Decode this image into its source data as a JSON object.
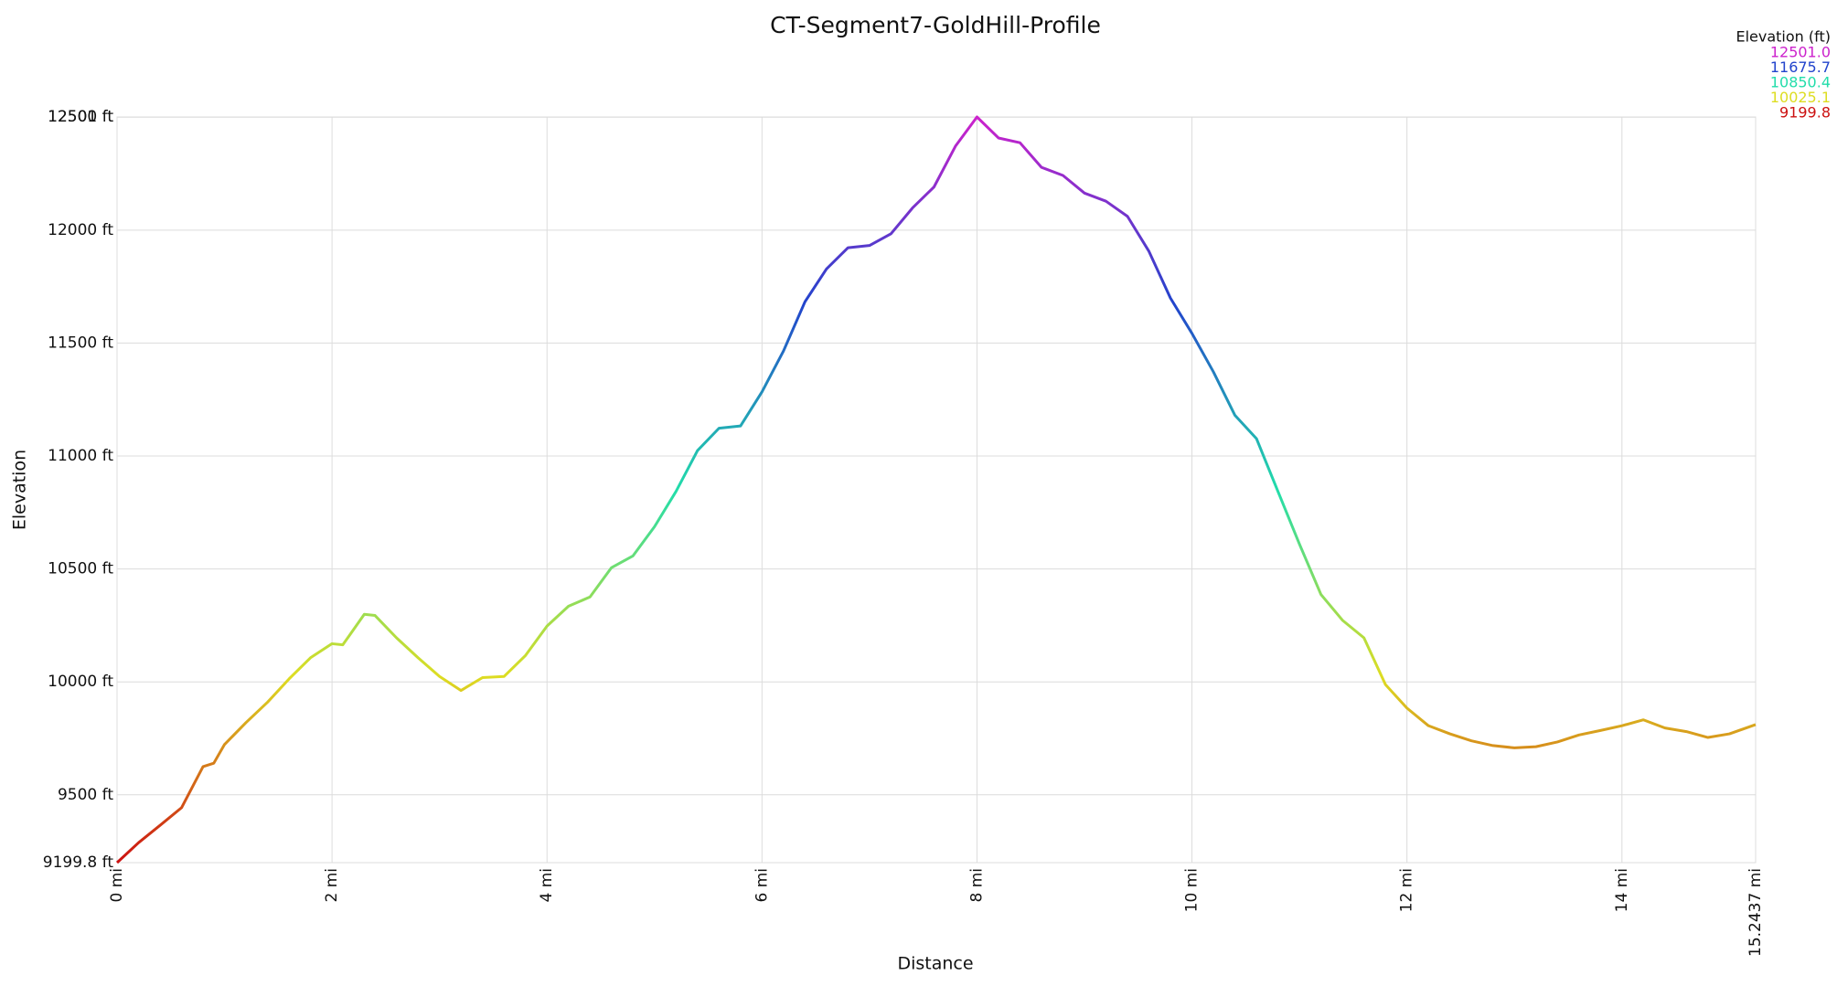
{
  "chart_data": {
    "type": "line",
    "title": "CT-Segment7-GoldHill-Profile",
    "x_label": "Distance",
    "y_label": "Elevation",
    "legend_title": "Elevation (ft)",
    "legend": [
      {
        "value": 12501.0,
        "label": "12501.0",
        "color": "#cc22cc"
      },
      {
        "value": 11675.7,
        "label": "11675.7",
        "color": "#2244cc"
      },
      {
        "value": 10850.4,
        "label": "10850.4",
        "color": "#22ddaa"
      },
      {
        "value": 10025.1,
        "label": "10025.1",
        "color": "#dddd22"
      },
      {
        "value": 9199.8,
        "label": "9199.8",
        "color": "#cc1111"
      }
    ],
    "x": [
      0,
      0.2,
      0.4,
      0.6,
      0.8,
      0.9,
      1.0,
      1.2,
      1.4,
      1.6,
      1.8,
      2.0,
      2.1,
      2.3,
      2.4,
      2.6,
      2.8,
      3.0,
      3.2,
      3.4,
      3.6,
      3.8,
      4.0,
      4.2,
      4.4,
      4.6,
      4.8,
      5.0,
      5.2,
      5.4,
      5.6,
      5.8,
      6.0,
      6.2,
      6.4,
      6.6,
      6.8,
      7.0,
      7.2,
      7.4,
      7.6,
      7.8,
      8.0,
      8.2,
      8.4,
      8.6,
      8.8,
      9.0,
      9.2,
      9.4,
      9.6,
      9.8,
      10.0,
      10.2,
      10.4,
      10.6,
      10.8,
      11.0,
      11.2,
      11.4,
      11.6,
      11.8,
      12.0,
      12.2,
      12.4,
      12.6,
      12.8,
      13.0,
      13.2,
      13.4,
      13.6,
      13.8,
      14.0,
      14.2,
      14.4,
      14.6,
      14.8,
      15.0,
      15.2437
    ],
    "series": [
      {
        "name": "Elevation",
        "values": [
          9199.8,
          9288,
          9365,
          9443,
          9625,
          9640,
          9723,
          9820,
          9910,
          10013,
          10107,
          10169,
          10164,
          10299,
          10294,
          10195,
          10107,
          10024,
          9962,
          10019,
          10024,
          10117,
          10247,
          10335,
          10376,
          10506,
          10558,
          10687,
          10843,
          11024,
          11123,
          11133,
          11284,
          11465,
          11683,
          11828,
          11922,
          11932,
          11984,
          12098,
          12191,
          12372,
          12501,
          12408,
          12387,
          12278,
          12242,
          12164,
          12128,
          12061,
          11906,
          11699,
          11543,
          11372,
          11180,
          11077,
          10843,
          10610,
          10387,
          10273,
          10195,
          9988,
          9884,
          9806,
          9770,
          9739,
          9718,
          9708,
          9713,
          9734,
          9765,
          9785,
          9806,
          9832,
          9796,
          9780,
          9754,
          9770,
          9811
        ]
      }
    ],
    "xlim": [
      0,
      15.2437
    ],
    "ylim": [
      9199.8,
      12501
    ],
    "xticks": [
      {
        "value": 0,
        "label": "0 mi"
      },
      {
        "value": 2,
        "label": "2 mi"
      },
      {
        "value": 4,
        "label": "4 mi"
      },
      {
        "value": 6,
        "label": "6 mi"
      },
      {
        "value": 8,
        "label": "8 mi"
      },
      {
        "value": 10,
        "label": "10 mi"
      },
      {
        "value": 12,
        "label": "12 mi"
      },
      {
        "value": 14,
        "label": "14 mi"
      },
      {
        "value": 15.2437,
        "label": "15.2437 mi"
      }
    ],
    "yticks": [
      {
        "value": 9199.8,
        "label": "9199.8 ft"
      },
      {
        "value": 9500,
        "label": "9500 ft"
      },
      {
        "value": 10000,
        "label": "10000 ft"
      },
      {
        "value": 10500,
        "label": "10500 ft"
      },
      {
        "value": 11000,
        "label": "11000 ft"
      },
      {
        "value": 11500,
        "label": "11500 ft"
      },
      {
        "value": 12000,
        "label": "12000 ft"
      },
      {
        "value": 12500,
        "label": "12500 ft"
      },
      {
        "value": 12501,
        "label": "12501 ft"
      }
    ],
    "grid": true
  }
}
